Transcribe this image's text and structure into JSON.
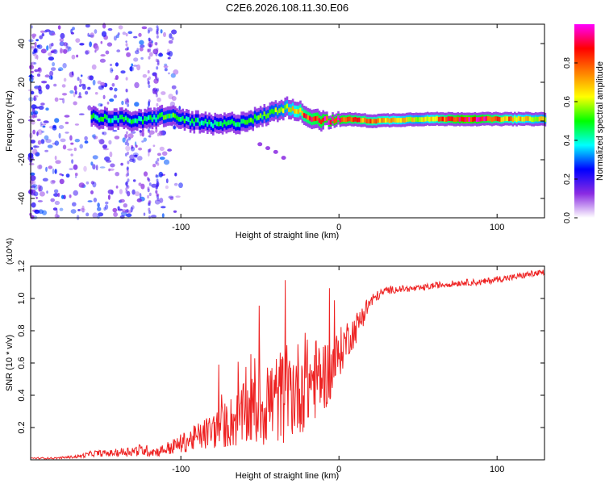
{
  "figure_title": "C2E6.2026.108.11.30.E06",
  "chart_data": [
    {
      "type": "heatmap",
      "title": "C2E6.2026.108.11.30.E06",
      "xlabel": "Height of straight line (km)",
      "ylabel": "Frequency (Hz)",
      "xlim": [
        -195,
        130
      ],
      "ylim": [
        -50,
        50
      ],
      "x_ticks": [
        -100,
        0,
        100
      ],
      "x_tick_labels": [
        "-100",
        "0",
        "100"
      ],
      "y_ticks": [
        -40,
        -20,
        0,
        20,
        40
      ],
      "y_tick_labels": [
        "-40",
        "-20",
        "0",
        "20",
        "40"
      ],
      "colorbar": {
        "label": "Normalized spectral amplitude",
        "range": [
          0,
          1
        ],
        "ticks": [
          0,
          0.2,
          0.4,
          0.6,
          0.8
        ],
        "tick_labels": [
          "0.0",
          "0.2",
          "0.4",
          "0.6",
          "0.8"
        ],
        "colors": [
          "#ffffff",
          "#8a2be2",
          "#0000ff",
          "#00ffff",
          "#00ff00",
          "#ffff00",
          "#ff8000",
          "#ff0000",
          "#ff00ff"
        ]
      },
      "ridge": {
        "x": [
          -157,
          -140,
          -125,
          -110,
          -95,
          -80,
          -65,
          -50,
          -38,
          -30,
          -22,
          -15,
          -5,
          5,
          20,
          50,
          80,
          110,
          130
        ],
        "frequency": [
          2,
          1,
          0,
          3,
          0,
          -2,
          -1,
          2,
          6,
          7,
          3,
          1,
          0,
          1,
          0,
          1,
          1,
          1,
          1
        ],
        "amplitude": [
          0.45,
          0.45,
          0.45,
          0.5,
          0.45,
          0.45,
          0.45,
          0.5,
          0.55,
          0.65,
          0.8,
          0.85,
          0.9,
          0.85,
          0.75,
          0.6,
          0.95,
          0.7,
          0.6
        ]
      },
      "scatter_branch": {
        "x": [
          -50,
          -45,
          -40,
          -35
        ],
        "frequency": [
          -12,
          -14,
          -16,
          -19
        ]
      }
    },
    {
      "type": "line",
      "title": "",
      "xlabel": "Height of straight line (km)",
      "ylabel": "SNR (10 * v/v)",
      "y_multiplier_label": "(x10^4)",
      "xlim": [
        -195,
        130
      ],
      "ylim": [
        0,
        1.2
      ],
      "x_ticks": [
        -100,
        0,
        100
      ],
      "x_tick_labels": [
        "-100",
        "0",
        "100"
      ],
      "y_ticks": [
        0.2,
        0.4,
        0.6,
        0.8,
        1.0,
        1.2
      ],
      "y_tick_labels": [
        "0.2",
        "0.4",
        "0.6",
        "0.8",
        "1.0",
        "1.2"
      ],
      "series": [
        {
          "name": "SNR",
          "color": "#ee2222",
          "x": [
            -195,
            -180,
            -165,
            -155,
            -145,
            -135,
            -125,
            -115,
            -105,
            -95,
            -85,
            -75,
            -65,
            -55,
            -45,
            -35,
            -25,
            -15,
            -5,
            0,
            5,
            10,
            15,
            20,
            25,
            30,
            40,
            50,
            60,
            70,
            80,
            90,
            100,
            110,
            120,
            130
          ],
          "values": [
            0.01,
            0.01,
            0.02,
            0.04,
            0.04,
            0.05,
            0.06,
            0.05,
            0.08,
            0.12,
            0.16,
            0.2,
            0.25,
            0.3,
            0.35,
            0.4,
            0.45,
            0.5,
            0.55,
            0.65,
            0.75,
            0.8,
            0.9,
            0.98,
            1.02,
            1.05,
            1.06,
            1.06,
            1.08,
            1.09,
            1.1,
            1.1,
            1.12,
            1.13,
            1.15,
            1.16
          ],
          "noise": [
            0.005,
            0.005,
            0.01,
            0.02,
            0.02,
            0.03,
            0.04,
            0.03,
            0.05,
            0.07,
            0.1,
            0.13,
            0.18,
            0.22,
            0.28,
            0.3,
            0.3,
            0.26,
            0.2,
            0.16,
            0.12,
            0.1,
            0.08,
            0.05,
            0.03,
            0.025,
            0.02,
            0.02,
            0.02,
            0.02,
            0.02,
            0.02,
            0.02,
            0.02,
            0.02,
            0.02
          ]
        }
      ]
    }
  ]
}
